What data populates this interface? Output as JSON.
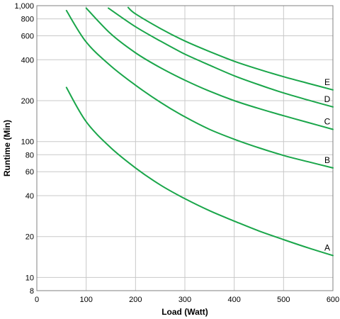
{
  "chart_data": {
    "type": "line",
    "title": "",
    "xlabel": "Load (Watt)",
    "ylabel": "Runtime (Min)",
    "xlim": [
      0,
      600
    ],
    "ylim": [
      8,
      1000
    ],
    "yscale": "log",
    "grid": true,
    "line_color": "#1aa64a",
    "x_ticks": [
      "0",
      "100",
      "200",
      "300",
      "400",
      "500",
      "600"
    ],
    "y_ticks": [
      {
        "value": 8,
        "label": "8"
      },
      {
        "value": 10,
        "label": "10"
      },
      {
        "value": 20,
        "label": "20"
      },
      {
        "value": 40,
        "label": "40"
      },
      {
        "value": 60,
        "label": "60"
      },
      {
        "value": 80,
        "label": "80"
      },
      {
        "value": 100,
        "label": "100"
      },
      {
        "value": 200,
        "label": "200"
      },
      {
        "value": 400,
        "label": "400"
      },
      {
        "value": 600,
        "label": "600"
      },
      {
        "value": 800,
        "label": "800"
      },
      {
        "value": 1000,
        "label": "1,000"
      }
    ],
    "series": [
      {
        "label": "A",
        "x": [
          60,
          100,
          150,
          200,
          250,
          300,
          350,
          400,
          450,
          500,
          550,
          600
        ],
        "y": [
          250,
          140,
          90,
          64,
          48,
          38,
          31,
          26,
          22,
          19,
          16.5,
          14.5
        ]
      },
      {
        "label": "B",
        "x": [
          60,
          100,
          150,
          200,
          250,
          300,
          350,
          400,
          450,
          500,
          550,
          600
        ],
        "y": [
          920,
          540,
          360,
          260,
          195,
          152,
          123,
          104,
          90,
          79,
          71,
          64
        ]
      },
      {
        "label": "C",
        "x": [
          100,
          150,
          200,
          250,
          300,
          350,
          400,
          450,
          500,
          550,
          600
        ],
        "y": [
          960,
          620,
          450,
          350,
          283,
          235,
          200,
          175,
          155,
          138,
          123
        ]
      },
      {
        "label": "D",
        "x": [
          145,
          200,
          250,
          300,
          350,
          400,
          450,
          500,
          550,
          600
        ],
        "y": [
          960,
          700,
          550,
          440,
          365,
          305,
          262,
          228,
          202,
          180
        ]
      },
      {
        "label": "E",
        "x": [
          185,
          200,
          250,
          300,
          350,
          400,
          450,
          500,
          550,
          600
        ],
        "y": [
          970,
          870,
          680,
          550,
          460,
          390,
          340,
          300,
          268,
          240
        ]
      }
    ]
  }
}
